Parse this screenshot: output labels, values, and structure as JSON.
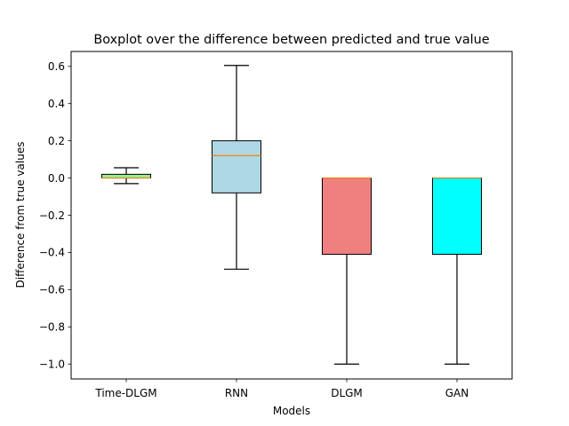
{
  "chart_data": {
    "type": "boxplot",
    "title": "Boxplot over the difference between predicted and true value",
    "xlabel": "Models",
    "ylabel": "Difference from true values",
    "ylim": [
      -1.08,
      0.68
    ],
    "yticks": [
      -1.0,
      -0.8,
      -0.6,
      -0.4,
      -0.2,
      0.0,
      0.2,
      0.4,
      0.6
    ],
    "ytick_labels": [
      "−1.0",
      "−0.8",
      "−0.6",
      "−0.4",
      "−0.2",
      "0.0",
      "0.2",
      "0.4",
      "0.6"
    ],
    "grid": false,
    "categories": [
      "Time-DLGM",
      "RNN",
      "DLGM",
      "GAN"
    ],
    "boxes": [
      {
        "label": "Time-DLGM",
        "whisker_low": -0.03,
        "q1": 0.0,
        "median": 0.0,
        "q3": 0.02,
        "whisker_high": 0.055,
        "color": "#90ee90",
        "median_color": "#ff7f0e"
      },
      {
        "label": "RNN",
        "whisker_low": -0.49,
        "q1": -0.08,
        "median": 0.12,
        "q3": 0.2,
        "whisker_high": 0.605,
        "color": "#add8e6",
        "median_color": "#ff7f0e"
      },
      {
        "label": "DLGM",
        "whisker_low": -1.0,
        "q1": -0.41,
        "median": 0.0,
        "q3": 0.0,
        "whisker_high": 0.0,
        "color": "#f08080",
        "median_color": "#ff7f0e"
      },
      {
        "label": "GAN",
        "whisker_low": -1.0,
        "q1": -0.41,
        "median": 0.0,
        "q3": 0.0,
        "whisker_high": 0.0,
        "color": "#00ffff",
        "median_color": "#ff7f0e"
      }
    ]
  }
}
